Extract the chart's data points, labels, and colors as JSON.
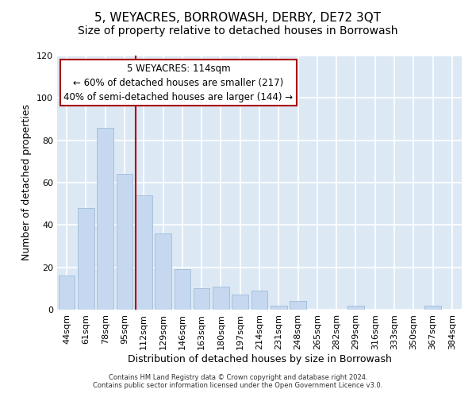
{
  "title": "5, WEYACRES, BORROWASH, DERBY, DE72 3QT",
  "subtitle": "Size of property relative to detached houses in Borrowash",
  "xlabel": "Distribution of detached houses by size in Borrowash",
  "ylabel": "Number of detached properties",
  "bar_labels": [
    "44sqm",
    "61sqm",
    "78sqm",
    "95sqm",
    "112sqm",
    "129sqm",
    "146sqm",
    "163sqm",
    "180sqm",
    "197sqm",
    "214sqm",
    "231sqm",
    "248sqm",
    "265sqm",
    "282sqm",
    "299sqm",
    "316sqm",
    "333sqm",
    "350sqm",
    "367sqm",
    "384sqm"
  ],
  "bar_values": [
    16,
    48,
    86,
    64,
    54,
    36,
    19,
    10,
    11,
    7,
    9,
    2,
    4,
    0,
    0,
    2,
    0,
    0,
    0,
    2,
    0
  ],
  "bar_color": "#c5d8f0",
  "bar_edge_color": "#a0bcd8",
  "vline_color": "#aa0000",
  "annotation_text": "5 WEYACRES: 114sqm\n← 60% of detached houses are smaller (217)\n40% of semi-detached houses are larger (144) →",
  "annotation_box_facecolor": "#ffffff",
  "annotation_box_edgecolor": "#aa0000",
  "ylim": [
    0,
    120
  ],
  "yticks": [
    0,
    20,
    40,
    60,
    80,
    100,
    120
  ],
  "footer_line1": "Contains HM Land Registry data © Crown copyright and database right 2024.",
  "footer_line2": "Contains public sector information licensed under the Open Government Licence v3.0.",
  "fig_bg_color": "#ffffff",
  "plot_bg_color": "#dce9f5",
  "grid_color": "#ffffff",
  "title_fontsize": 11,
  "subtitle_fontsize": 10,
  "axis_label_fontsize": 9,
  "tick_fontsize": 8
}
